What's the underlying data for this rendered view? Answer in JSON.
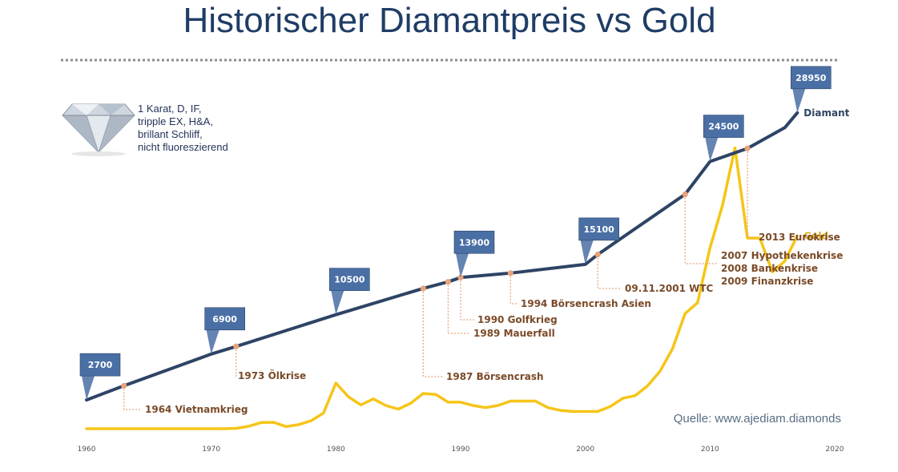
{
  "header": {
    "title": "Historischer Diamantpreis vs Gold"
  },
  "diamond_description": [
    "1 Karat, D, IF,",
    "tripple EX, H&A,",
    "brillant Schliff,",
    "nicht fluoreszierend"
  ],
  "source": "Quelle: www.ajediam.diamonds",
  "colors": {
    "diamond_line": "#2e4465",
    "gold_line": "#f5c518",
    "event_marker": "#e8a37a",
    "event_text": "#7a4a28",
    "callout": "#4a6fa5",
    "title": "#1f3d66"
  },
  "icons": {
    "diamond": "diamond-icon"
  },
  "chart_data": {
    "type": "line",
    "title": "Historischer Diamantpreis vs Gold",
    "xlim": [
      1960,
      2020
    ],
    "x_ticks": [
      "1960",
      "1970",
      "1980",
      "1990",
      "2000",
      "2010",
      "2020"
    ],
    "grid": false,
    "series": [
      {
        "name": "Diamant",
        "x": [
          1960,
          1963,
          1970,
          1972,
          1980,
          1987,
          1989,
          1990,
          1994,
          2000,
          2001,
          2008,
          2010,
          2013,
          2016,
          2017
        ],
        "y": [
          2700,
          4000,
          6900,
          7600,
          10500,
          12900,
          13500,
          13900,
          14300,
          15100,
          16000,
          21500,
          24500,
          25700,
          27600,
          28950
        ]
      },
      {
        "name": "Gold",
        "x": [
          1960,
          1965,
          1970,
          1971,
          1972,
          1973,
          1974,
          1975,
          1976,
          1977,
          1978,
          1979,
          1980,
          1981,
          1982,
          1983,
          1984,
          1985,
          1986,
          1987,
          1988,
          1989,
          1990,
          1991,
          1992,
          1993,
          1994,
          1995,
          1996,
          1997,
          1998,
          1999,
          2000,
          2001,
          2002,
          2003,
          2004,
          2005,
          2006,
          2007,
          2008,
          2009,
          2010,
          2011,
          2012,
          2013,
          2014,
          2015,
          2016,
          2017
        ],
        "y": [
          70,
          70,
          70,
          70,
          110,
          290,
          640,
          660,
          270,
          450,
          800,
          1500,
          4250,
          3000,
          2250,
          2800,
          2200,
          1870,
          2400,
          3300,
          3200,
          2500,
          2500,
          2200,
          2000,
          2200,
          2600,
          2600,
          2600,
          2000,
          1750,
          1650,
          1650,
          1650,
          2100,
          2850,
          3100,
          4000,
          5350,
          7400,
          10600,
          11600,
          16600,
          20500,
          25750,
          17500,
          17500,
          14400,
          15400,
          17700
        ]
      }
    ],
    "series_labels": [
      {
        "text": "Diamant",
        "series": "Diamant",
        "x": 2017,
        "y": 28950
      },
      {
        "text": "Gold",
        "series": "Gold",
        "x": 2017,
        "y": 17700
      }
    ],
    "callouts": [
      {
        "value": "2700",
        "x": 1960,
        "y": 2700
      },
      {
        "value": "6900",
        "x": 1970,
        "y": 6900
      },
      {
        "value": "10500",
        "x": 1980,
        "y": 10500
      },
      {
        "value": "13900",
        "x": 1990,
        "y": 13900
      },
      {
        "value": "15100",
        "x": 2000,
        "y": 15100
      },
      {
        "value": "24500",
        "x": 2010,
        "y": 24500
      },
      {
        "value": "28950",
        "x": 2017,
        "y": 28950
      }
    ],
    "events": [
      {
        "lines": [
          "1964 Vietnamkrieg"
        ],
        "x": 1963,
        "y": 4000
      },
      {
        "lines": [
          "1973 Ölkrise"
        ],
        "x": 1972,
        "y": 7600
      },
      {
        "lines": [
          "1987 Börsencrash"
        ],
        "x": 1987,
        "y": 12900
      },
      {
        "lines": [
          "1989 Mauerfall"
        ],
        "x": 1989,
        "y": 13500
      },
      {
        "lines": [
          "1990 Golfkrieg"
        ],
        "x": 1990,
        "y": 13900
      },
      {
        "lines": [
          "1994 Börsencrash Asien"
        ],
        "x": 1994,
        "y": 14300
      },
      {
        "lines": [
          "09.11.2001 WTC"
        ],
        "x": 2001,
        "y": 16000
      },
      {
        "lines": [
          "2007 Hypothekenkrise",
          "2008 Bankenkrise",
          "2009 Finanzkrise"
        ],
        "x": 2008,
        "y": 21500
      },
      {
        "lines": [
          "2013 Eurokrise"
        ],
        "x": 2013,
        "y": 25700
      }
    ]
  }
}
